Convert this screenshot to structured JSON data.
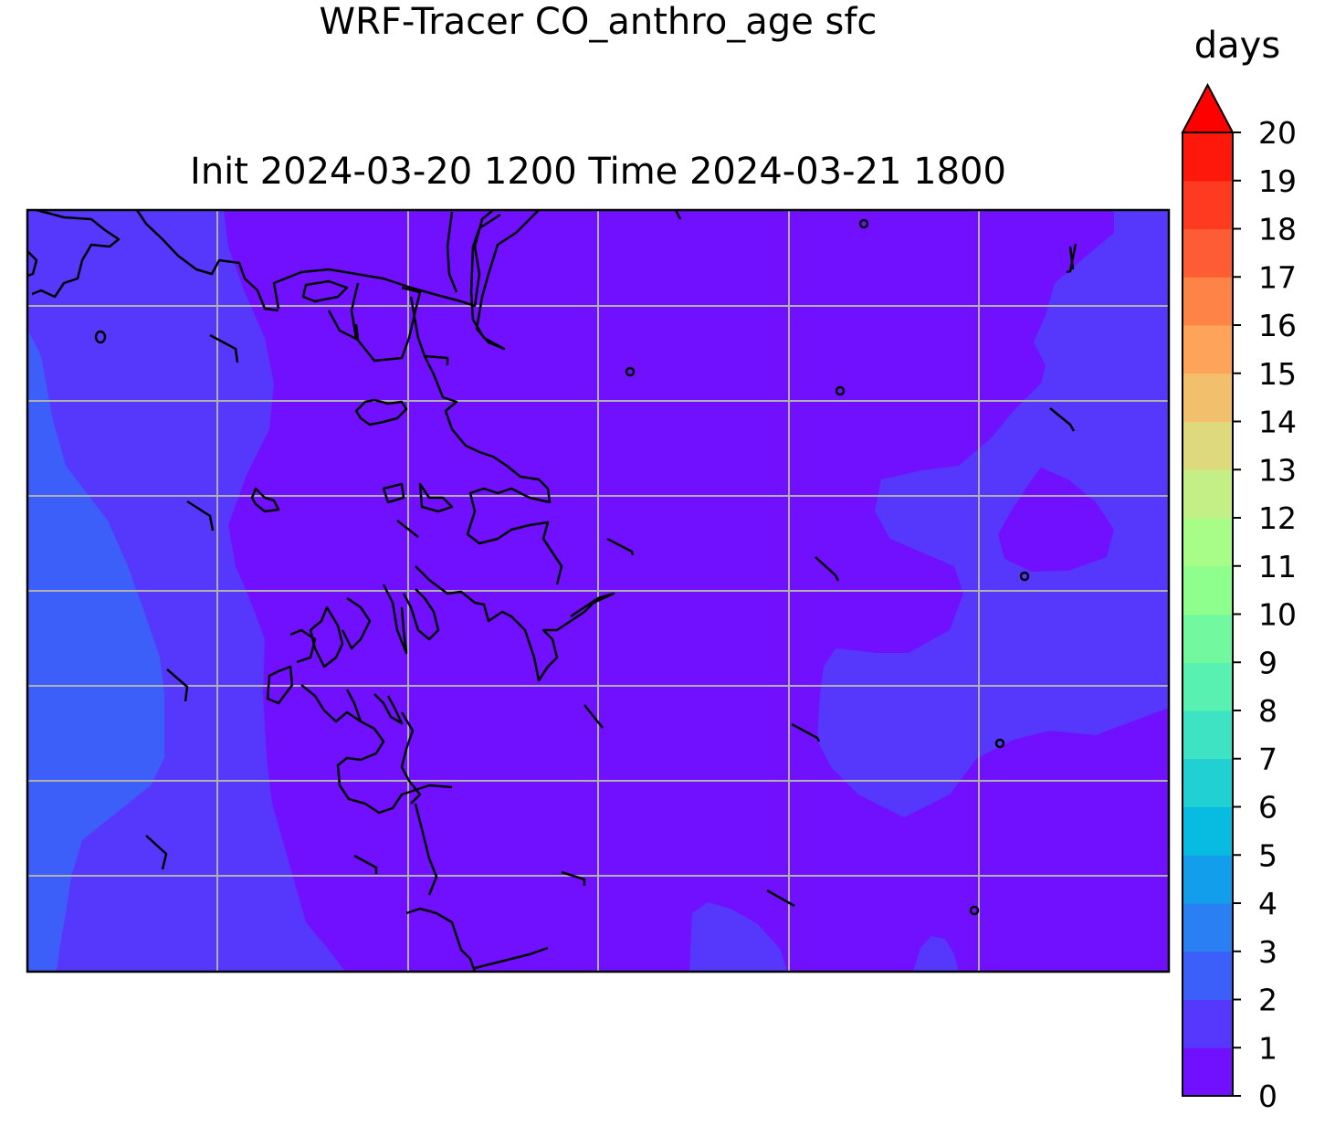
{
  "title_line1": "WRF-Tracer CO_anthro_age sfc",
  "title_line2": "Init 2024-03-20 1200 Time 2024-03-21 1800",
  "colorbar": {
    "label": "days",
    "ticks": [
      "0",
      "1",
      "2",
      "3",
      "4",
      "5",
      "6",
      "7",
      "8",
      "9",
      "10",
      "11",
      "12",
      "13",
      "14",
      "15",
      "16",
      "17",
      "18",
      "19",
      "20"
    ],
    "colors": [
      "#7010fe",
      "#5638fd",
      "#3c5ef9",
      "#2a80f3",
      "#129eeb",
      "#08bce1",
      "#20d0d2",
      "#3ee3c4",
      "#58f1b2",
      "#72f99f",
      "#8efe8c",
      "#a8fc88",
      "#c4ee86",
      "#ddd97c",
      "#f2c06c",
      "#fda45a",
      "#fe8346",
      "#fe5c34",
      "#fe3a20",
      "#fe180c"
    ],
    "extend_color": "#ff0000"
  },
  "chart_data": {
    "type": "heatmap",
    "title": "WRF-Tracer CO_anthro_age sfc",
    "subtitle": "Init 2024-03-20 1200 Time 2024-03-21 1800",
    "colorbar_label": "days",
    "colorbar_range": [
      0,
      20
    ],
    "colorbar_extend": "max",
    "field_levels_present": [
      0,
      1,
      2
    ],
    "gridlines": true,
    "coastlines": true,
    "wind_barbs": true
  }
}
